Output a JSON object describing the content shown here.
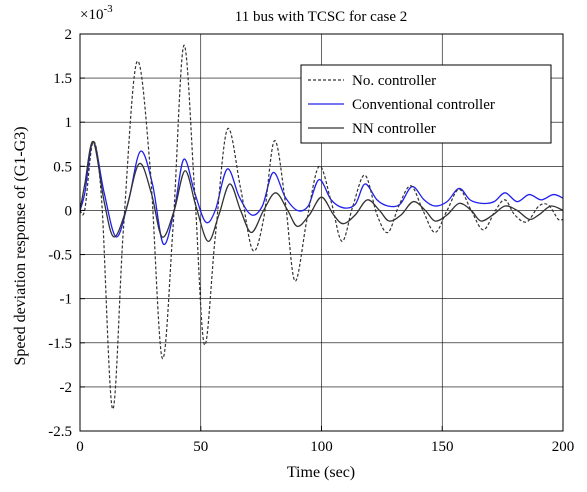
{
  "chart_data": {
    "type": "line",
    "title": "11 bus with TCSC for case 2",
    "xlabel": "Time (sec)",
    "ylabel": "Speed deviation response of (G1-G3)",
    "y_multiplier": "×10",
    "y_exponent": "-3",
    "xlim": [
      0,
      200
    ],
    "ylim": [
      -2.5,
      2
    ],
    "x_ticks": [
      0,
      50,
      100,
      150,
      200
    ],
    "x_tick_labels": [
      "0",
      "50",
      "100",
      "150",
      "200"
    ],
    "y_ticks": [
      2,
      1.5,
      1,
      0.5,
      0,
      -0.5,
      -1,
      -1.5,
      -2,
      -2.5
    ],
    "y_tick_labels": [
      "2",
      "1.5",
      "1",
      "0.5",
      "0",
      "-0.5",
      "-1",
      "-1.5",
      "-2",
      "-2.5"
    ],
    "grid": true,
    "legend_position": "top-right",
    "series": [
      {
        "name": "No. controller",
        "color": "#333333",
        "style": "dashed",
        "x": [
          0,
          2,
          5.5,
          9,
          13.5,
          18,
          23.5,
          29,
          34,
          38.5,
          43,
          47.5,
          51.5,
          56,
          61,
          66.5,
          71.5,
          76,
          80.5,
          85,
          89,
          94,
          99,
          104,
          108.5,
          113,
          118,
          123,
          127.5,
          132,
          137,
          142,
          147,
          152,
          157,
          162,
          167,
          172,
          176,
          180,
          185,
          190,
          194,
          198,
          200
        ],
        "values": [
          0,
          0.01,
          0.78,
          0.1,
          -2.25,
          -0.2,
          1.68,
          0.5,
          -1.67,
          -0.2,
          1.87,
          0.2,
          -1.52,
          -0.3,
          0.92,
          0.25,
          -0.45,
          -0.1,
          0.79,
          0.1,
          -0.8,
          -0.1,
          0.5,
          0.1,
          -0.35,
          0.05,
          0.4,
          -0.05,
          -0.25,
          0.05,
          0.28,
          0,
          -0.25,
          0,
          0.24,
          0,
          -0.22,
          0,
          0.12,
          -0.05,
          -0.13,
          0.05,
          0.06,
          -0.1,
          -0.1
        ]
      },
      {
        "name": "Conventional controller",
        "color": "#2020ee",
        "style": "solid",
        "x": [
          0,
          2,
          5.5,
          10,
          15,
          20,
          25,
          30,
          34.5,
          39,
          43,
          47.5,
          52,
          56,
          61,
          66,
          71,
          75.5,
          80,
          85,
          90,
          94.5,
          99,
          104,
          109,
          114,
          118,
          123,
          127.5,
          132.5,
          137.5,
          142.5,
          147,
          152,
          157,
          161.5,
          166.5,
          171.5,
          176,
          181,
          186,
          191,
          196,
          200
        ],
        "values": [
          0,
          0.2,
          0.78,
          0.2,
          -0.3,
          0.1,
          0.67,
          0.3,
          -0.38,
          0,
          0.58,
          0.2,
          -0.13,
          0,
          0.47,
          0.15,
          -0.05,
          0.05,
          0.43,
          0.15,
          0,
          0.05,
          0.35,
          0.12,
          0.03,
          0.07,
          0.3,
          0.12,
          0.05,
          0.07,
          0.27,
          0.12,
          0.05,
          0.1,
          0.25,
          0.12,
          0.08,
          0.1,
          0.2,
          0.1,
          0.18,
          0.12,
          0.18,
          0.14
        ]
      },
      {
        "name": "NN controller",
        "color": "#333333",
        "style": "solid",
        "x": [
          0,
          2,
          5.5,
          10,
          14,
          19,
          24.5,
          29.5,
          34,
          39,
          43.5,
          48,
          53,
          57.5,
          62,
          66.5,
          71,
          76,
          81,
          86,
          90,
          95,
          100,
          105,
          109,
          114,
          119,
          124,
          128,
          133,
          138,
          143,
          147,
          152,
          157,
          162,
          166,
          171,
          176,
          181,
          186,
          190,
          195,
          200
        ],
        "values": [
          0,
          0.3,
          0.78,
          0.1,
          -0.3,
          0,
          0.53,
          0.2,
          -0.3,
          0,
          0.45,
          0.05,
          -0.35,
          -0.05,
          0.3,
          0,
          -0.25,
          0,
          0.2,
          0,
          -0.18,
          -0.05,
          0.15,
          -0.05,
          -0.15,
          -0.05,
          0.12,
          0,
          -0.12,
          -0.05,
          0.1,
          0,
          -0.12,
          -0.05,
          0.08,
          0,
          -0.12,
          -0.05,
          0.05,
          0,
          -0.1,
          -0.05,
          0.05,
          0
        ]
      }
    ]
  }
}
